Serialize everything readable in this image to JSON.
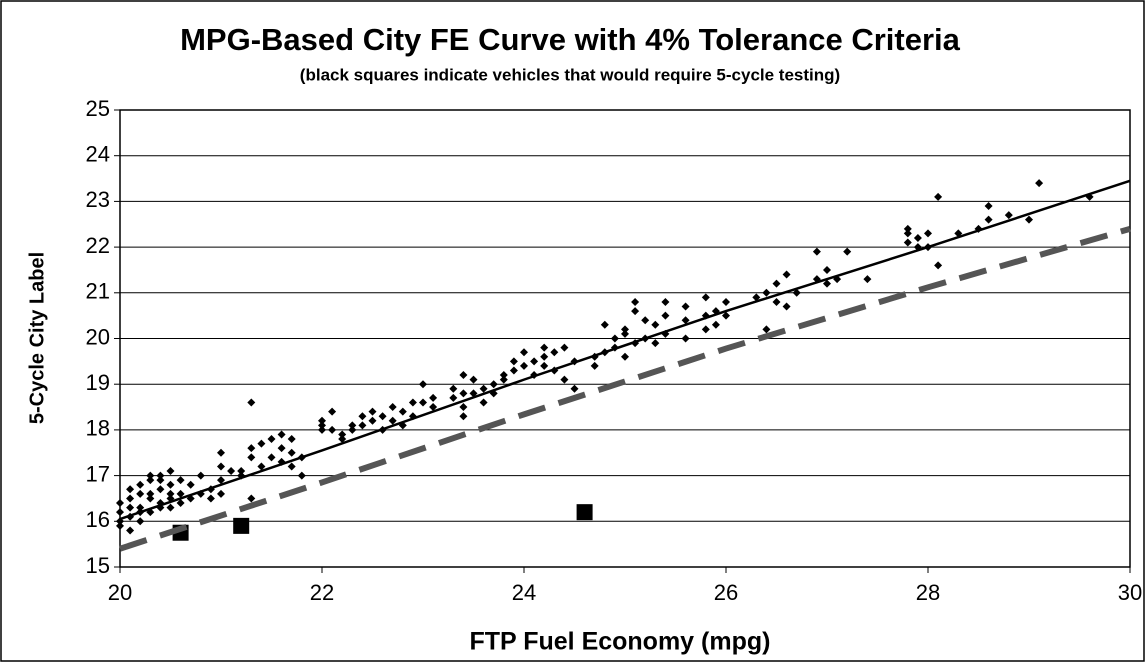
{
  "chart_data": {
    "type": "scatter",
    "title": "MPG-Based City FE Curve with 4% Tolerance Criteria",
    "subtitle": "(black squares indicate vehicles that would require 5-cycle testing)",
    "x_label": "FTP Fuel Economy (mpg)",
    "y_label": "5-Cycle City Label",
    "xlim": [
      20,
      30
    ],
    "xticks": [
      20,
      22,
      24,
      26,
      28,
      30
    ],
    "ylim": [
      15,
      25
    ],
    "yticks": [
      15,
      16,
      17,
      18,
      19,
      20,
      21,
      22,
      23,
      24,
      25
    ],
    "grid": true,
    "series": [
      {
        "marker": "diamond",
        "color": "#000000",
        "x": [
          20,
          20,
          20,
          20,
          20.1,
          20.1,
          20.1,
          20.1,
          20.1,
          20.2,
          20.2,
          20.2,
          20.2,
          20.2,
          20.3,
          20.3,
          20.3,
          20.3,
          20.3,
          20.4,
          20.4,
          20.4,
          20.4,
          20.4,
          20.5,
          20.5,
          20.5,
          20.5,
          20.5,
          20.6,
          20.6,
          20.6,
          20.7,
          20.7,
          20.8,
          20.8,
          20.9,
          20.9,
          21,
          21,
          21,
          21,
          21.1,
          21.2,
          21.2,
          21.3,
          21.3,
          21.3,
          21.3,
          21.4,
          21.4,
          21.5,
          21.5,
          21.6,
          21.6,
          21.6,
          21.7,
          21.7,
          21.7,
          21.8,
          21.8,
          22,
          22,
          22,
          22.1,
          22.1,
          22.2,
          22.2,
          22.3,
          22.3,
          22.4,
          22.4,
          22.5,
          22.5,
          22.6,
          22.6,
          22.7,
          22.7,
          22.8,
          22.8,
          22.9,
          22.9,
          23,
          23,
          23.1,
          23.1,
          23.3,
          23.3,
          23.4,
          23.4,
          23.4,
          23.4,
          23.5,
          23.5,
          23.6,
          23.6,
          23.7,
          23.7,
          23.8,
          23.8,
          23.9,
          23.9,
          24,
          24,
          24.1,
          24.1,
          24.2,
          24.2,
          24.2,
          24.3,
          24.3,
          24.4,
          24.4,
          24.5,
          24.5,
          24.7,
          24.7,
          24.8,
          24.8,
          24.9,
          24.9,
          25,
          25,
          25,
          25.1,
          25.1,
          25.1,
          25.2,
          25.2,
          25.3,
          25.3,
          25.4,
          25.4,
          25.4,
          25.6,
          25.6,
          25.6,
          25.8,
          25.8,
          25.8,
          25.9,
          25.9,
          26,
          26,
          26.3,
          26.4,
          26.4,
          26.5,
          26.5,
          26.6,
          26.6,
          26.7,
          26.9,
          26.9,
          27,
          27,
          27.1,
          27.2,
          27.4,
          27.8,
          27.8,
          27.8,
          27.9,
          27.9,
          28,
          28,
          28.1,
          28.1,
          28.3,
          28.5,
          28.6,
          28.6,
          28.8,
          29,
          29.1,
          29.6
        ],
        "y": [
          16,
          16.2,
          16.4,
          15.9,
          16.1,
          16.5,
          16.7,
          15.8,
          16.3,
          16,
          16.6,
          16.8,
          16.3,
          16.2,
          16.5,
          16.9,
          16.2,
          17,
          16.6,
          16.4,
          16.7,
          17,
          16.3,
          16.9,
          16.5,
          16.8,
          17.1,
          16.3,
          16.6,
          16.4,
          16.9,
          16.6,
          16.5,
          16.8,
          16.6,
          17,
          16.7,
          16.5,
          17.2,
          17.5,
          16.9,
          16.6,
          17.1,
          17,
          17.1,
          17.4,
          17.6,
          18.6,
          16.5,
          17.2,
          17.7,
          17.4,
          17.8,
          17.6,
          17.9,
          17.3,
          17.2,
          17.5,
          17.8,
          17.4,
          17,
          18,
          18.2,
          18.1,
          18.4,
          18,
          17.8,
          17.9,
          18,
          18.1,
          18.1,
          18.3,
          18.2,
          18.4,
          18.3,
          18,
          18.5,
          18.2,
          18.4,
          18.1,
          18.6,
          18.3,
          18.6,
          19,
          18.5,
          18.7,
          18.7,
          18.9,
          19.2,
          18.5,
          18.3,
          18.8,
          19.1,
          18.8,
          18.9,
          18.6,
          19,
          18.8,
          19.2,
          19.1,
          19.5,
          19.3,
          19.4,
          19.7,
          19.2,
          19.5,
          19.4,
          19.8,
          19.6,
          19.7,
          19.3,
          19.8,
          19.1,
          19.5,
          18.9,
          19.4,
          19.6,
          19.7,
          20.3,
          20,
          19.8,
          20.1,
          20.2,
          19.6,
          19.9,
          20.6,
          20.8,
          20,
          20.4,
          19.9,
          20.3,
          20.8,
          20.5,
          20.1,
          20.7,
          20.4,
          20,
          20.5,
          20.9,
          20.2,
          20.3,
          20.6,
          20.5,
          20.8,
          20.9,
          21,
          20.2,
          21.2,
          20.8,
          20.7,
          21.4,
          21,
          21.3,
          21.9,
          21.5,
          21.2,
          21.3,
          21.9,
          21.3,
          22.1,
          22.3,
          22.4,
          22.2,
          22,
          22.3,
          22,
          23.1,
          21.6,
          22.3,
          22.4,
          22.9,
          22.6,
          22.7,
          22.6,
          23.4,
          23.1
        ]
      },
      {
        "marker": "square",
        "color": "#000000",
        "x": [
          20.6,
          21.2,
          24.6
        ],
        "y": [
          15.75,
          15.9,
          16.2
        ]
      },
      {
        "marker": "line",
        "dash": "solid",
        "color": "#000000",
        "x": [
          20,
          22,
          24,
          26,
          28,
          30
        ],
        "y": [
          16.05,
          17.55,
          19.1,
          20.6,
          22.0,
          23.45
        ]
      },
      {
        "marker": "line",
        "dash": "dashed",
        "color": "#555555",
        "x": [
          20,
          22,
          24,
          26,
          28,
          30
        ],
        "y": [
          15.4,
          16.85,
          18.34,
          19.78,
          21.12,
          22.4
        ]
      }
    ]
  }
}
